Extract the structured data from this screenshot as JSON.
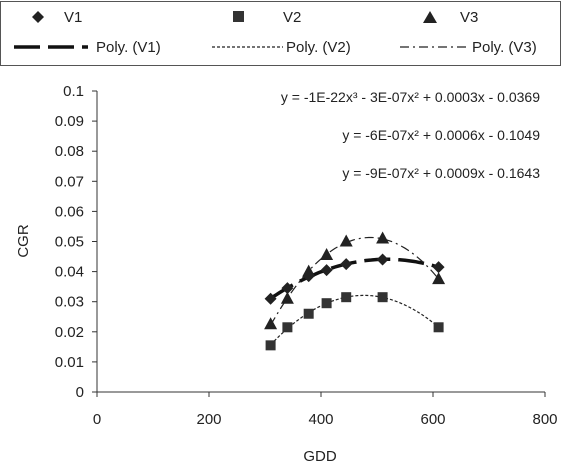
{
  "chart_data": {
    "type": "scatter",
    "xlabel": "GDD",
    "ylabel": "CGR",
    "xlim": [
      0,
      800
    ],
    "ylim": [
      0,
      0.1
    ],
    "x_ticks": [
      "0",
      "200",
      "400",
      "600",
      "800"
    ],
    "y_ticks": [
      "0",
      "0.01",
      "0.02",
      "0.03",
      "0.04",
      "0.05",
      "0.06",
      "0.07",
      "0.08",
      "0.09",
      "0.1"
    ],
    "grid": false,
    "legend": {
      "placement": "top",
      "entries": [
        "V1",
        "V2",
        "V3",
        "Poly. (V1)",
        "Poly. (V2)",
        "Poly. (V3)"
      ]
    },
    "series": [
      {
        "name": "V1",
        "marker": "diamond",
        "x": [
          310,
          340,
          378,
          410,
          445,
          510,
          610
        ],
        "y": [
          0.031,
          0.0345,
          0.0385,
          0.0405,
          0.0425,
          0.044,
          0.0415
        ]
      },
      {
        "name": "V2",
        "marker": "square",
        "x": [
          310,
          340,
          378,
          410,
          445,
          510,
          610
        ],
        "y": [
          0.0155,
          0.0215,
          0.026,
          0.0295,
          0.0315,
          0.0315,
          0.0215
        ]
      },
      {
        "name": "V3",
        "marker": "triangle",
        "x": [
          310,
          340,
          378,
          410,
          445,
          510,
          610
        ],
        "y": [
          0.0225,
          0.031,
          0.04,
          0.0455,
          0.05,
          0.051,
          0.0375
        ]
      }
    ],
    "trendlines": [
      {
        "name": "Poly. (V1)",
        "style": "long-dash",
        "x_range": [
          310,
          610
        ],
        "equation": "y = -1E-22x³ - 3E-07x² + 0.0003x - 0.0369"
      },
      {
        "name": "Poly. (V2)",
        "style": "short-dash",
        "x_range": [
          310,
          610
        ],
        "equation": "y = -6E-07x² + 0.0006x - 0.1049"
      },
      {
        "name": "Poly. (V3)",
        "style": "dash-dot",
        "x_range": [
          310,
          610
        ],
        "equation": "y = -9E-07x² + 0.0009x - 0.1643"
      }
    ]
  }
}
